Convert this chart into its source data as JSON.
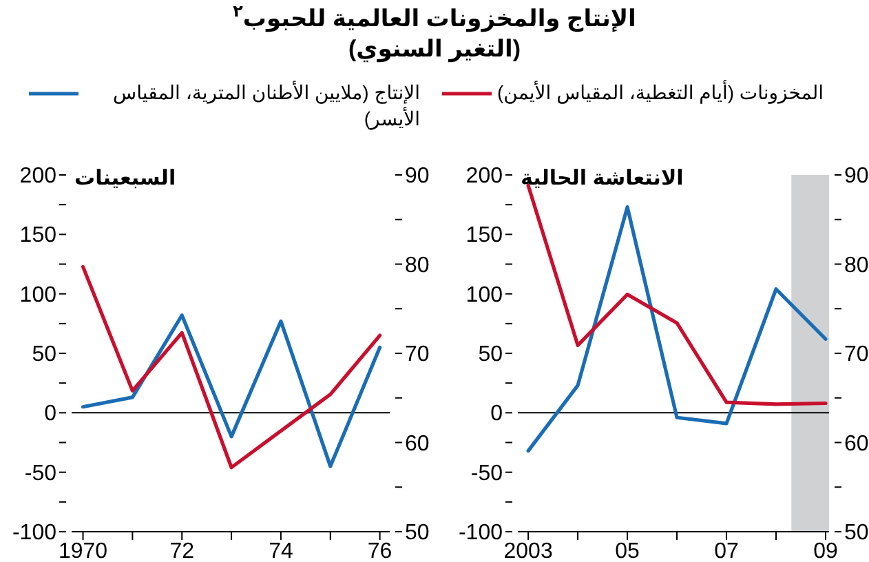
{
  "chart_data": [
    {
      "type": "line",
      "title": "الإنتاج والمخزونات العالمية للحبوب$^{٢}$",
      "subtitle": "(التغير السنوي)",
      "annotations": [
        "السبعينات"
      ],
      "x": [
        1970,
        1971,
        1972,
        1973,
        1974,
        1975,
        1976
      ],
      "xlim": [
        1969.77,
        1976.2
      ],
      "xticks": [
        1970,
        {
          "value": 1971,
          "label": null
        },
        {
          "value": 1972,
          "label": "72"
        },
        {
          "value": 1973,
          "label": null
        },
        {
          "value": 1974,
          "label": "74"
        },
        {
          "value": 1975,
          "label": null
        },
        {
          "value": 1976,
          "label": "76"
        }
      ],
      "ylim": [
        -100,
        200
      ],
      "yticks": [
        -100,
        {
          "value": -75,
          "label": null
        },
        -50,
        {
          "value": -25,
          "label": null
        },
        0,
        {
          "value": 25,
          "label": null
        },
        50,
        {
          "value": 75,
          "label": null
        },
        100,
        {
          "value": 125,
          "label": null
        },
        150,
        {
          "value": 175,
          "label": null
        },
        200
      ],
      "y2lim": [
        50,
        90
      ],
      "y2ticks": [
        50,
        {
          "value": 55,
          "label": null
        },
        60,
        {
          "value": 65,
          "label": null
        },
        70,
        {
          "value": 75,
          "label": null
        },
        80,
        {
          "value": 85,
          "label": null
        },
        90
      ],
      "ref_lines": [
        {
          "axis": "y",
          "value": 0,
          "color": "#000000"
        }
      ],
      "legend": "top",
      "grid": false,
      "series": [
        {
          "name": "الإنتاج (ملايين الأطنان المترية، المقياس الأيسر)",
          "color": "#1a6db5",
          "values": [
            5,
            13,
            82,
            -20,
            77,
            -45,
            55
          ]
        },
        {
          "name": "المخزونات (أيام التغطية، المقياس الأيمن)",
          "color": "#c8102e",
          "axis": "y2",
          "values": [
            79.7,
            65.8,
            72.3,
            57.2,
            61.3,
            65.4,
            72
          ]
        }
      ]
    },
    {
      "type": "line",
      "annotations": [
        "الانتعاشة الحالية"
      ],
      "x": [
        2003,
        2004,
        2005,
        2006,
        2007,
        2008,
        2009
      ],
      "xlim": [
        2002.79,
        2009.07
      ],
      "xticks": [
        2003,
        {
          "value": 2004,
          "label": null
        },
        {
          "value": 2005,
          "label": "05"
        },
        {
          "value": 2006,
          "label": null
        },
        {
          "value": 2007,
          "label": "07"
        },
        {
          "value": 2008,
          "label": null
        },
        {
          "value": 2009,
          "label": "09"
        }
      ],
      "ylim": [
        -100,
        200
      ],
      "yticks": [
        -100,
        {
          "value": -75,
          "label": null
        },
        -50,
        {
          "value": -25,
          "label": null
        },
        0,
        {
          "value": 25,
          "label": null
        },
        50,
        {
          "value": 75,
          "label": null
        },
        100,
        {
          "value": 125,
          "label": null
        },
        150,
        {
          "value": 175,
          "label": null
        },
        200
      ],
      "y2lim": [
        50,
        90
      ],
      "y2ticks": [
        50,
        {
          "value": 55,
          "label": null
        },
        60,
        {
          "value": 65,
          "label": null
        },
        70,
        {
          "value": 75,
          "label": null
        },
        80,
        {
          "value": 85,
          "label": null
        },
        90
      ],
      "ref_lines": [
        {
          "axis": "y",
          "value": 0,
          "color": "#000000"
        }
      ],
      "bands": [
        {
          "axis": "x",
          "from": 2008.31,
          "to": 2009.07,
          "color": "#d0d1d3"
        }
      ],
      "grid": false,
      "series": [
        {
          "color": "#1a6db5",
          "values": [
            -32,
            23,
            173,
            -4,
            -9,
            104,
            62
          ]
        },
        {
          "color": "#c8102e",
          "axis": "y2",
          "values": [
            88.8,
            70.9,
            76.6,
            73.4,
            64.5,
            64.3,
            64.4
          ]
        }
      ]
    }
  ]
}
